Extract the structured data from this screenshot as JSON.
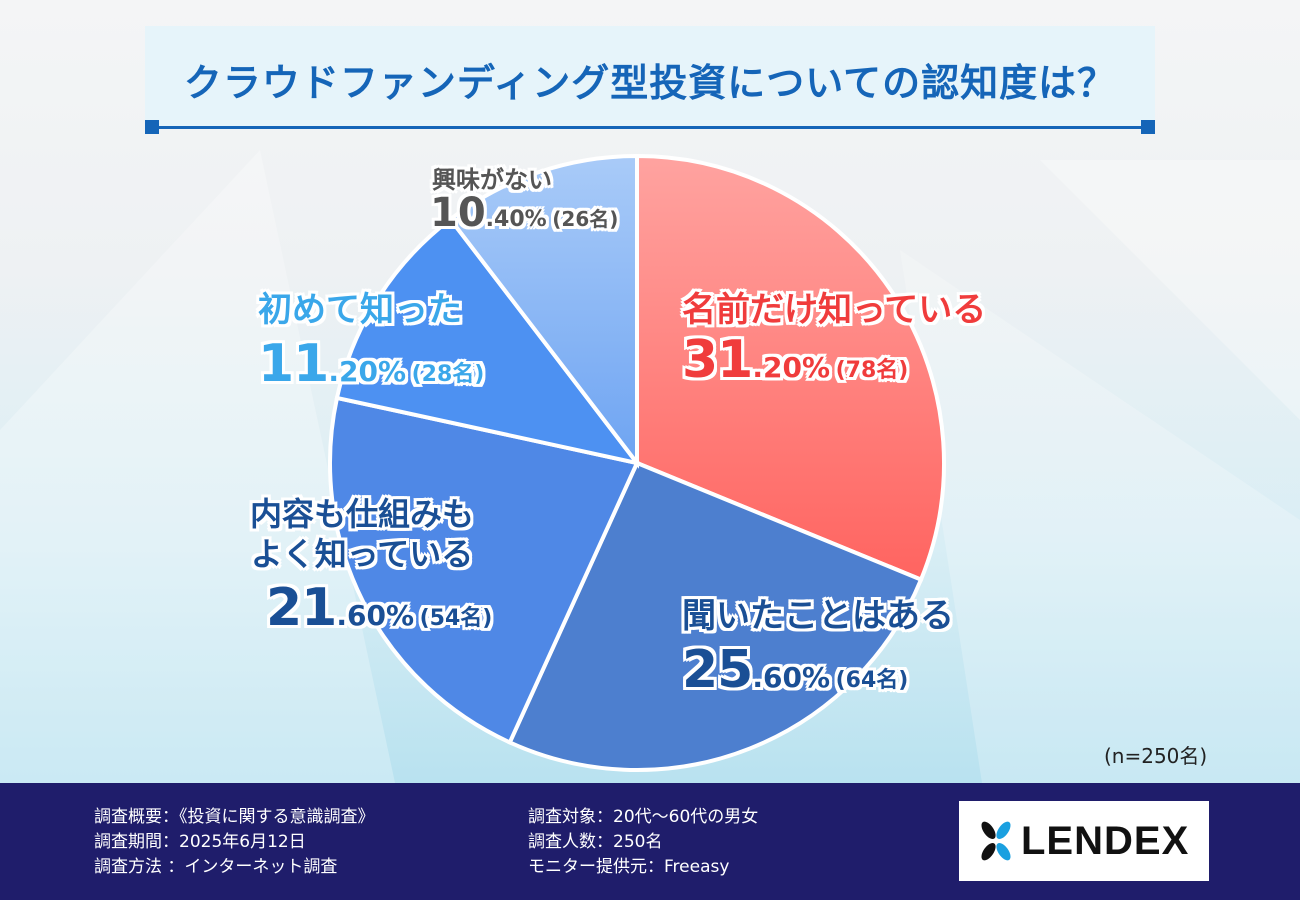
{
  "title": "クラウドファンディング型投資についての認知度は？",
  "sample_note": "(n=250名)",
  "chart_data": {
    "type": "pie",
    "title": "クラウドファンディング型投資についての認知度は？",
    "slices": [
      {
        "label": "名前だけ知っている",
        "int": "31",
        "dec": ".20%",
        "count": "(78名)",
        "value": 31.2,
        "color": "#ff6f6f"
      },
      {
        "label": "聞いたことはある",
        "int": "25",
        "dec": ".60%",
        "count": "(64名)",
        "value": 25.6,
        "color": "#4d7fcf"
      },
      {
        "label": "内容も仕組みもよく知っている",
        "int": "21",
        "dec": ".60%",
        "count": "(54名)",
        "value": 21.6,
        "color": "#4f88e6"
      },
      {
        "label": "初めて知った",
        "int": "11",
        "dec": ".20%",
        "count": "(28名)",
        "value": 11.2,
        "color": "#4d91f2"
      },
      {
        "label": "興味がない",
        "int": "10",
        "dec": ".40%",
        "count": "(26名)",
        "value": 10.4,
        "color": "#8db8f5"
      }
    ]
  },
  "labels": {
    "s0_label": "名前だけ知っている",
    "s1_label": "聞いたことはある",
    "s2_line1": "内容も仕組みも",
    "s2_line2": "よく知っている",
    "s3_label": "初めて知った",
    "s4_label": "興味がない"
  },
  "footer": {
    "left": [
      "調査概要：《投資に関する意識調査》",
      "調査期間：2025年6月12日",
      "調査方法 ：インターネット調査"
    ],
    "right": [
      "調査対象：20代〜60代の男女",
      "調査人数：250名",
      "モニター提供元：Freeasy"
    ],
    "logo": "LENDEX"
  },
  "colors": {
    "title": "#1565b8",
    "footer_bg": "#1f1d6b",
    "red_label": "#f03c3c",
    "dark_blue_label": "#1a4f95",
    "light_blue_label": "#3aa7ea",
    "gray_label": "#555555"
  }
}
